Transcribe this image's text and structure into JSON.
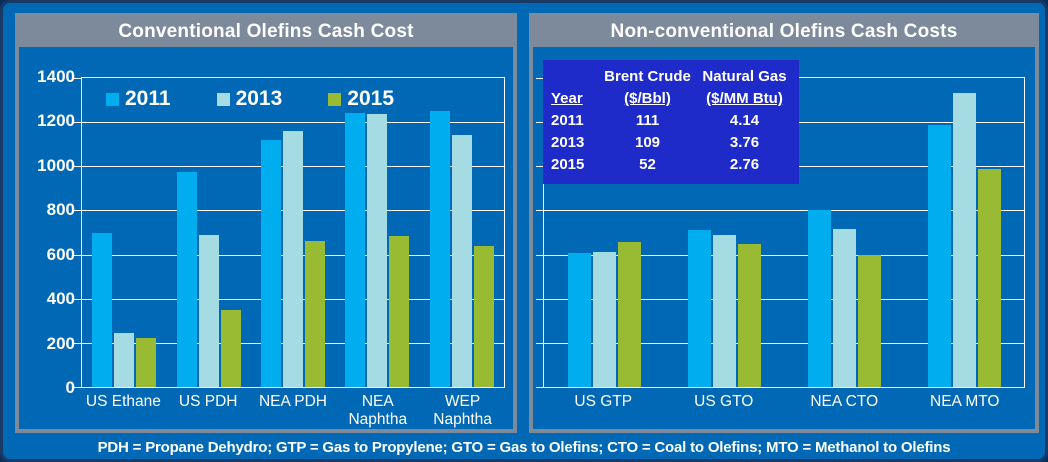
{
  "page": {
    "footnote": "PDH = Propane Dehydro; GTP = Gas to Propylene; GTO = Gas to Olefins; CTO = Coal to Olefins; MTO = Methanol to Olefins"
  },
  "colors": {
    "background": "#0068B4",
    "panel_gray": "#7D8A9B",
    "gridline": "#FFFFFF",
    "bar_2011": "#00AEEF",
    "bar_2013": "#A5DCE4",
    "bar_2015": "#98BB33",
    "inset_table_blue": "#1F2BC8"
  },
  "inset_table": {
    "col_headers_line1": [
      "",
      "Brent Crude",
      "Natural Gas"
    ],
    "col_headers_line2": [
      "Year",
      "($/Bbl)",
      "($/MM Btu)"
    ],
    "rows": [
      [
        "2011",
        "111",
        "4.14"
      ],
      [
        "2013",
        "109",
        "3.76"
      ],
      [
        "2015",
        "52",
        "2.76"
      ]
    ]
  },
  "chart_data": [
    {
      "type": "bar",
      "title": "Conventional Olefins Cash Cost",
      "categories": [
        "US Ethane",
        "US PDH",
        "NEA PDH",
        "NEA Naphtha",
        "WEP Naphtha"
      ],
      "series": [
        {
          "name": "2011",
          "color": "#00AEEF",
          "values": [
            700,
            975,
            1120,
            1240,
            1250
          ]
        },
        {
          "name": "2013",
          "color": "#A5DCE4",
          "values": [
            245,
            690,
            1160,
            1235,
            1140
          ]
        },
        {
          "name": "2015",
          "color": "#98BB33",
          "values": [
            220,
            350,
            660,
            685,
            640
          ]
        }
      ],
      "ylim": [
        0,
        1400
      ],
      "ytick_interval": 200,
      "grid": true,
      "yaxis_labels": true,
      "legend_position": "top-left"
    },
    {
      "type": "bar",
      "title": "Non-conventional Olefins Cash Costs",
      "categories": [
        "US GTP",
        "US GTO",
        "NEA CTO",
        "NEA MTO"
      ],
      "series": [
        {
          "name": "2011",
          "color": "#00AEEF",
          "values": [
            605,
            710,
            800,
            1185
          ]
        },
        {
          "name": "2013",
          "color": "#A5DCE4",
          "values": [
            610,
            690,
            715,
            1330
          ]
        },
        {
          "name": "2015",
          "color": "#98BB33",
          "values": [
            655,
            650,
            600,
            990
          ]
        }
      ],
      "ylim": [
        0,
        1400
      ],
      "ytick_interval": 200,
      "grid": true,
      "yaxis_labels": false,
      "legend_position": "none"
    }
  ]
}
